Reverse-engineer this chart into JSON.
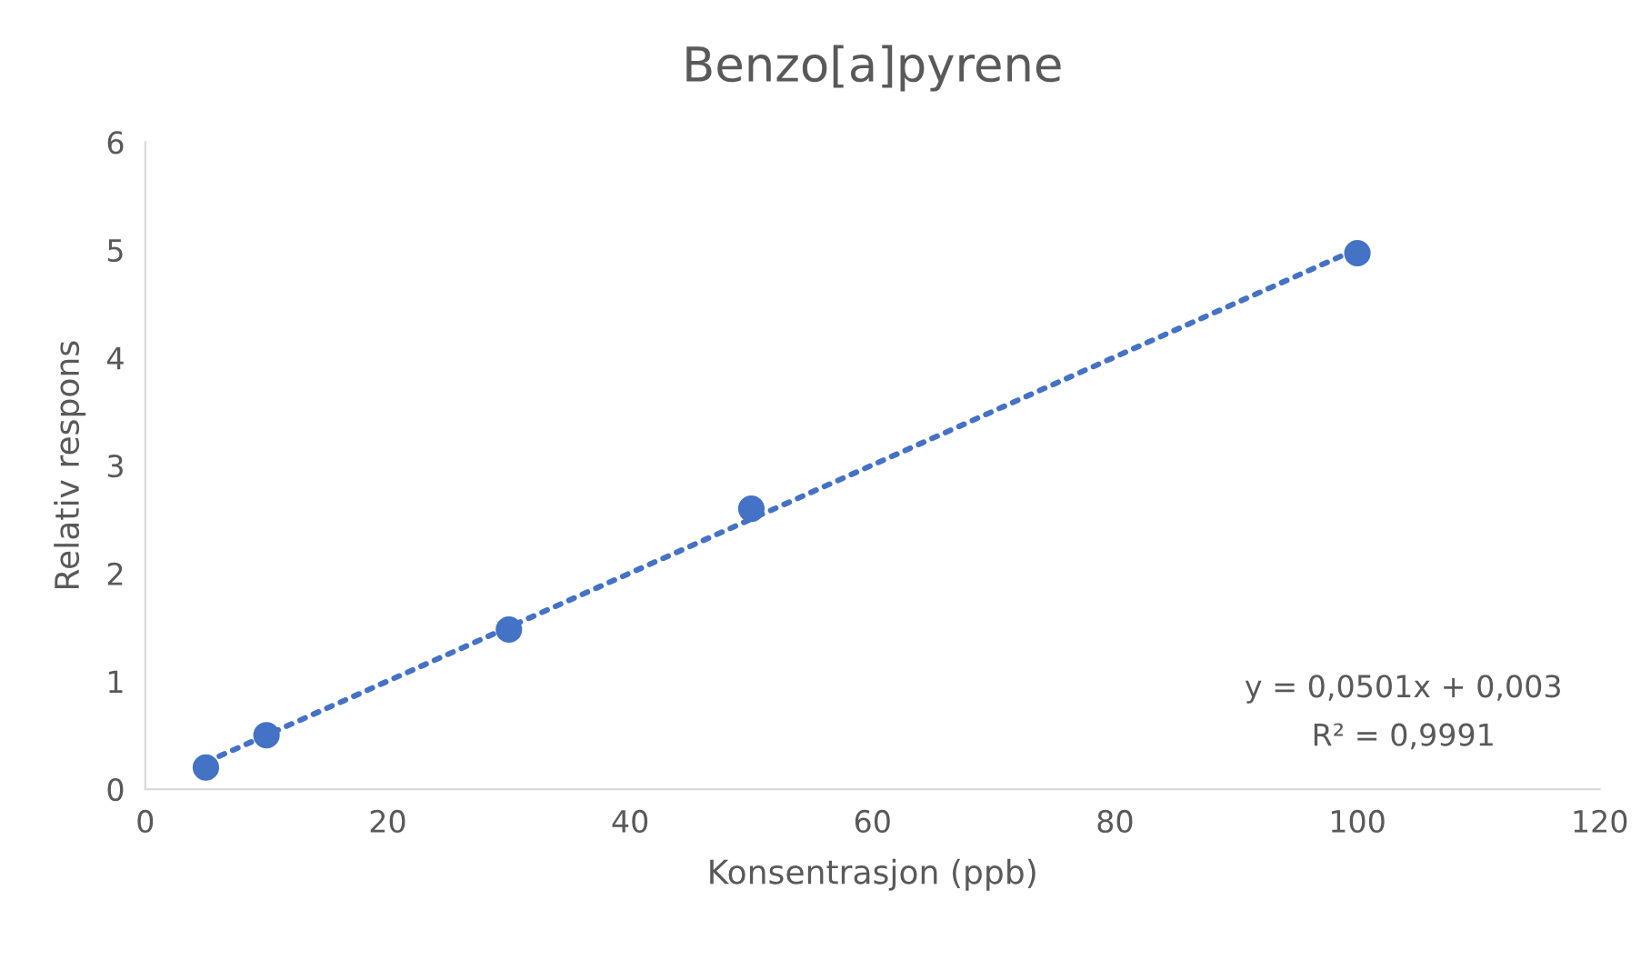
{
  "chart_data": {
    "type": "scatter",
    "title": "Benzo[a]pyrene",
    "xlabel": "Konsentrasjon (ppb)",
    "ylabel": "Relativ respons",
    "x": [
      5,
      10,
      30,
      50,
      100
    ],
    "series": [
      {
        "color": "#4472c4",
        "marker": "circle",
        "values": [
          0.2,
          0.5,
          1.48,
          2.6,
          4.97
        ]
      },
      {
        "type": "line",
        "color": "#4472c4",
        "line_style": "dotted",
        "x": [
          5,
          100
        ],
        "values": [
          0.25,
          5.01
        ]
      }
    ],
    "annotations": [
      "y = 0,0501x + 0,003",
      "R² = 0,9991"
    ],
    "xlim": [
      0,
      120
    ],
    "xticks": [
      0,
      20,
      40,
      60,
      80,
      100,
      120
    ],
    "ylim": [
      0,
      6
    ],
    "yticks": [
      0,
      1,
      2,
      3,
      4,
      5,
      6
    ],
    "grid": false,
    "legend": false
  }
}
